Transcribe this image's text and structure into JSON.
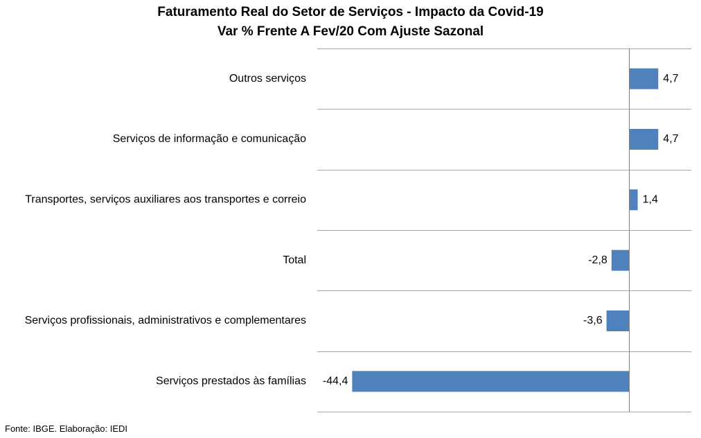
{
  "chart_data": {
    "type": "bar",
    "orientation": "horizontal",
    "title": "Faturamento Real do Setor de Serviços - Impacto da Covid-19",
    "subtitle": "Var % Frente A Fev/20 Com Ajuste Sazonal",
    "categories": [
      "Outros serviços",
      "Serviços de informação e comunicação",
      "Transportes, serviços auxiliares aos transportes e correio",
      "Total",
      "Serviços profissionais, administrativos e complementares",
      "Serviços prestados às famílias"
    ],
    "values": [
      4.7,
      4.7,
      1.4,
      -2.8,
      -3.6,
      -44.4
    ],
    "value_labels": [
      "4,7",
      "4,7",
      "1,4",
      "-2,8",
      "-3,6",
      "-44,4"
    ],
    "xlim": [
      -50,
      10
    ],
    "bar_color": "#4F81BD",
    "grid": true,
    "legend": "none"
  },
  "footer": {
    "source": "Fonte: IBGE. Elaboração: IEDI"
  }
}
